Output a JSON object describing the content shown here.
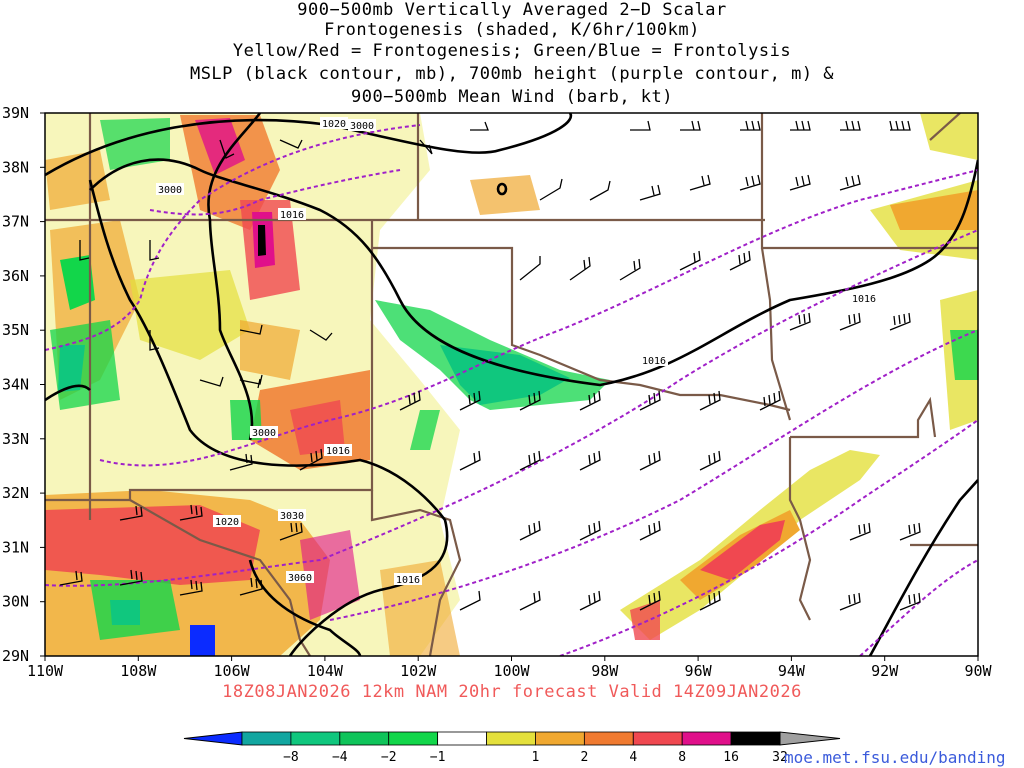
{
  "title_lines": [
    "900−500mb Vertically Averaged 2−D Scalar",
    "Frontogenesis (shaded, K/6hr/100km)",
    "Yellow/Red = Frontogenesis;  Green/Blue = Frontolysis",
    "MSLP (black contour, mb), 700mb height (purple contour, m) &",
    "900−500mb Mean Wind (barb, kt)"
  ],
  "valid_text": "18Z08JAN2026 12km NAM 20hr forecast Valid 14Z09JAN2026",
  "credit": "moe.met.fsu.edu/banding",
  "lat_labels": [
    "39N",
    "38N",
    "37N",
    "36N",
    "35N",
    "34N",
    "33N",
    "32N",
    "31N",
    "30N",
    "29N"
  ],
  "lon_labels": [
    "110W",
    "108W",
    "106W",
    "104W",
    "102W",
    "100W",
    "98W",
    "96W",
    "94W",
    "92W",
    "90W"
  ],
  "colorbar": {
    "labels": [
      "−8",
      "−4",
      "−2",
      "−1",
      "1",
      "2",
      "4",
      "8",
      "16",
      "32"
    ],
    "colors": [
      "#0b2bff",
      "#12a6a0",
      "#10c77e",
      "#12d64a",
      "#21e21a",
      "#ffffff",
      "#e4e03c",
      "#f0a830",
      "#f07a30",
      "#f04850",
      "#e0108a",
      "#000000",
      "#a0a0a0"
    ]
  },
  "contour_labels": {
    "mslp": [
      "1020",
      "1016",
      "1016",
      "1016",
      "1016",
      "1020",
      "1016"
    ],
    "height": [
      "3000",
      "3000",
      "3000",
      "3030",
      "3060"
    ]
  },
  "colors": {
    "mslp": "#000000",
    "height": "#a020c8",
    "border": "#7a5a48"
  }
}
